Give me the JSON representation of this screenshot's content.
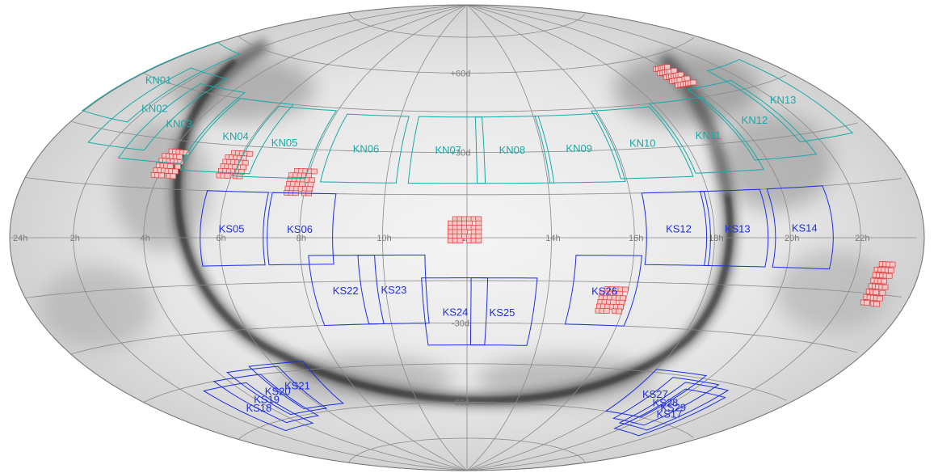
{
  "map": {
    "projection": "mollweide-like all-sky",
    "colors": {
      "north_fields": "#1aaaa8",
      "south_fields": "#1e2fe0",
      "tiles_fill": "#f4c6c6",
      "tiles_stroke": "#e03b3b",
      "grid": "#8a8a8a",
      "sky_light": "#f2f2f2",
      "sky_dark": "#1a1a1a"
    },
    "ra_labels": [
      {
        "text": "24h",
        "ra": 24
      },
      {
        "text": "22h",
        "ra": 22
      },
      {
        "text": "20h",
        "ra": 20
      },
      {
        "text": "18h",
        "ra": 18
      },
      {
        "text": "16h",
        "ra": 16
      },
      {
        "text": "14h",
        "ra": 14
      },
      {
        "text": "12h",
        "ra": 12
      },
      {
        "text": "10h",
        "ra": 10
      },
      {
        "text": "8h",
        "ra": 8
      },
      {
        "text": "6h",
        "ra": 6
      },
      {
        "text": "4h",
        "ra": 4
      },
      {
        "text": "2h",
        "ra": 2
      }
    ],
    "dec_labels": [
      {
        "text": "+60d",
        "dec": 60
      },
      {
        "text": "+30d",
        "dec": 30
      },
      {
        "text": "-30d",
        "dec": -30
      },
      {
        "text": "-60d",
        "dec": -60
      }
    ],
    "north_fields": [
      {
        "name": "KN01",
        "ra": 0.9,
        "dec": 45
      },
      {
        "name": "KN02",
        "ra": 2.2,
        "dec": 38
      },
      {
        "name": "KN03",
        "ra": 3.5,
        "dec": 35
      },
      {
        "name": "KN04",
        "ra": 5.5,
        "dec": 33
      },
      {
        "name": "KN05",
        "ra": 7.0,
        "dec": 32
      },
      {
        "name": "KN06",
        "ra": 9.3,
        "dec": 31
      },
      {
        "name": "KN07",
        "ra": 11.5,
        "dec": 31
      },
      {
        "name": "KN08",
        "ra": 13.2,
        "dec": 31
      },
      {
        "name": "KN09",
        "ra": 15.0,
        "dec": 31
      },
      {
        "name": "KN10",
        "ra": 16.8,
        "dec": 32
      },
      {
        "name": "KN11",
        "ra": 18.8,
        "dec": 33
      },
      {
        "name": "KN12",
        "ra": 20.6,
        "dec": 36
      },
      {
        "name": "KN13",
        "ra": 22.3,
        "dec": 40
      }
    ],
    "south_fields": [
      {
        "name": "KS05",
        "ra": 6.3,
        "dec": 3
      },
      {
        "name": "KS06",
        "ra": 8.0,
        "dec": 3
      },
      {
        "name": "KS12",
        "ra": 17.1,
        "dec": 3
      },
      {
        "name": "KS13",
        "ra": 18.6,
        "dec": 3
      },
      {
        "name": "KS14",
        "ra": 20.4,
        "dec": 3
      },
      {
        "name": "KS22",
        "ra": 9.0,
        "dec": -18
      },
      {
        "name": "KS23",
        "ra": 10.2,
        "dec": -18
      },
      {
        "name": "KS24",
        "ra": 11.7,
        "dec": -26
      },
      {
        "name": "KS25",
        "ra": 12.9,
        "dec": -26
      },
      {
        "name": "KS26",
        "ra": 15.4,
        "dec": -18
      },
      {
        "name": "KS21",
        "ra": 6.1,
        "dec": -50
      },
      {
        "name": "KS20",
        "ra": 5.2,
        "dec": -51
      },
      {
        "name": "KS19",
        "ra": 4.4,
        "dec": -53
      },
      {
        "name": "KS18",
        "ra": 3.6,
        "dec": -55
      },
      {
        "name": "KS27",
        "ra": 18.9,
        "dec": -52
      },
      {
        "name": "KS28",
        "ra": 19.7,
        "dec": -54
      },
      {
        "name": "KS29",
        "ra": 20.3,
        "dec": -55
      },
      {
        "name": "KS17",
        "ra": 20.6,
        "dec": -57
      }
    ],
    "tile_groups": [
      {
        "name": "tile-group-a",
        "ra": 19.9,
        "dec": 52,
        "cols": 7,
        "rows": 5
      },
      {
        "name": "tile-group-b",
        "ra": 7.9,
        "dec": 18,
        "cols": 6,
        "rows": 6
      },
      {
        "name": "tile-group-c",
        "ra": 6.0,
        "dec": 23,
        "cols": 6,
        "rows": 6
      },
      {
        "name": "tile-group-d",
        "ra": 4.2,
        "dec": 22,
        "cols": 6,
        "rows": 6
      },
      {
        "name": "tile-group-e",
        "ra": 12.0,
        "dec": 2,
        "cols": 7,
        "rows": 6
      },
      {
        "name": "tile-group-f",
        "ra": 15.7,
        "dec": -22,
        "cols": 6,
        "rows": 6
      },
      {
        "name": "tile-group-g",
        "ra": 22.9,
        "dec": -13,
        "cols": 5,
        "rows": 8
      }
    ]
  }
}
